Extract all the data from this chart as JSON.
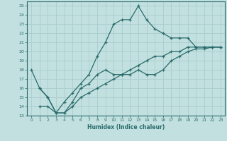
{
  "xlabel": "Humidex (Indice chaleur)",
  "bg_color": "#c2e0e0",
  "line_color": "#2a6b6b",
  "grid_color": "#aacccc",
  "xlim": [
    -0.5,
    23.5
  ],
  "ylim": [
    13,
    25.5
  ],
  "yticks": [
    13,
    14,
    15,
    16,
    17,
    18,
    19,
    20,
    21,
    22,
    23,
    24,
    25
  ],
  "xticks": [
    0,
    1,
    2,
    3,
    4,
    5,
    6,
    7,
    8,
    9,
    10,
    11,
    12,
    13,
    14,
    15,
    16,
    17,
    18,
    19,
    20,
    21,
    22,
    23
  ],
  "line1_x": [
    0,
    1,
    2,
    3,
    4,
    5,
    6,
    7,
    8,
    9,
    10,
    11,
    12,
    13,
    14,
    15,
    16,
    17,
    18,
    19,
    20,
    21,
    22,
    23
  ],
  "line1_y": [
    18,
    16,
    15,
    13.3,
    14.5,
    15.5,
    16.5,
    17.5,
    19.5,
    21,
    23,
    23.5,
    23.5,
    25,
    23.5,
    22.5,
    22,
    21.5,
    21.5,
    21.5,
    20.5,
    20.5,
    20.5,
    20.5
  ],
  "line2_x": [
    1,
    2,
    3,
    4,
    5,
    6,
    7,
    8,
    9,
    10,
    11,
    12,
    13,
    14,
    15,
    16,
    17,
    18,
    19,
    20,
    21,
    22,
    23
  ],
  "line2_y": [
    16,
    15,
    13.3,
    13.3,
    14.5,
    16,
    16.5,
    17.5,
    18,
    17.5,
    17.5,
    17.5,
    18,
    17.5,
    17.5,
    18,
    19,
    19.5,
    20,
    20.3,
    20.3,
    20.5,
    20.5
  ],
  "line3_x": [
    1,
    2,
    3,
    4,
    5,
    6,
    7,
    8,
    9,
    10,
    11,
    12,
    13,
    14,
    15,
    16,
    17,
    18,
    19,
    20,
    21,
    22,
    23
  ],
  "line3_y": [
    14,
    14,
    13.3,
    13.3,
    14,
    15,
    15.5,
    16,
    16.5,
    17,
    17.5,
    18,
    18.5,
    19,
    19.5,
    19.5,
    20,
    20,
    20.5,
    20.5,
    20.5,
    20.5,
    20.5
  ]
}
